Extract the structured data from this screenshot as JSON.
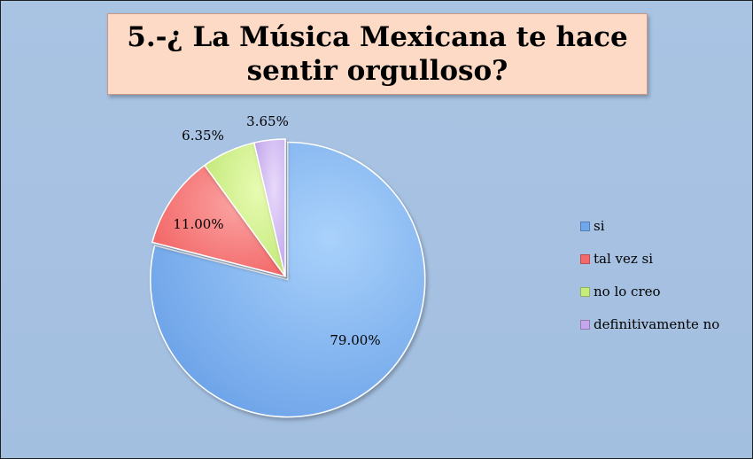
{
  "chart_data": {
    "type": "pie",
    "title": "5.-¿ La Música Mexicana te hace sentir orgulloso?",
    "categories": [
      "si",
      "tal vez si",
      "no lo creo",
      "definitivamente no"
    ],
    "values": [
      79.0,
      11.0,
      6.35,
      3.65
    ],
    "labels": [
      "79.00%",
      "11.00%",
      "6.35%",
      "3.65%"
    ],
    "colors": [
      "#6fa6ec",
      "#f46a6a",
      "#c6ec7c",
      "#c3a6ec"
    ],
    "exploded_slice": "si",
    "legend_position": "right",
    "background": "#a6c1e2"
  }
}
